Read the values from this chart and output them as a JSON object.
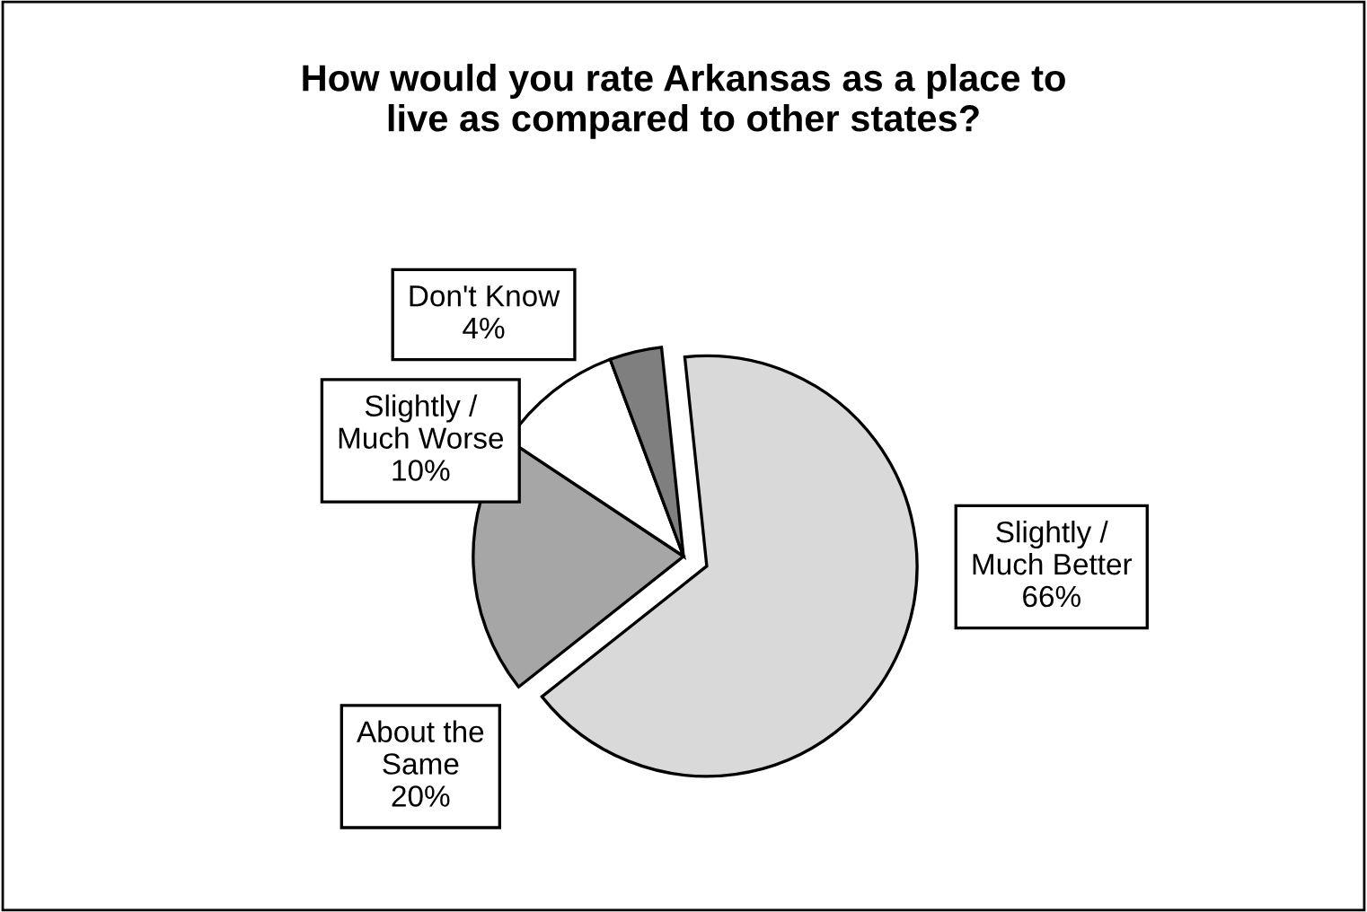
{
  "chart_data": {
    "type": "pie",
    "title": "How would you rate Arkansas as a place to\nlive as compared to other states?",
    "categories": [
      "Slightly /\nMuch Better",
      "About the\nSame",
      "Slightly /\nMuch Worse",
      "Don't Know"
    ],
    "values": [
      66,
      20,
      10,
      4
    ],
    "colors": [
      "#d9d9d9",
      "#a6a6a6",
      "#ffffff",
      "#7f7f7f"
    ],
    "value_labels": [
      "66%",
      "20%",
      "10%",
      "4%"
    ]
  }
}
